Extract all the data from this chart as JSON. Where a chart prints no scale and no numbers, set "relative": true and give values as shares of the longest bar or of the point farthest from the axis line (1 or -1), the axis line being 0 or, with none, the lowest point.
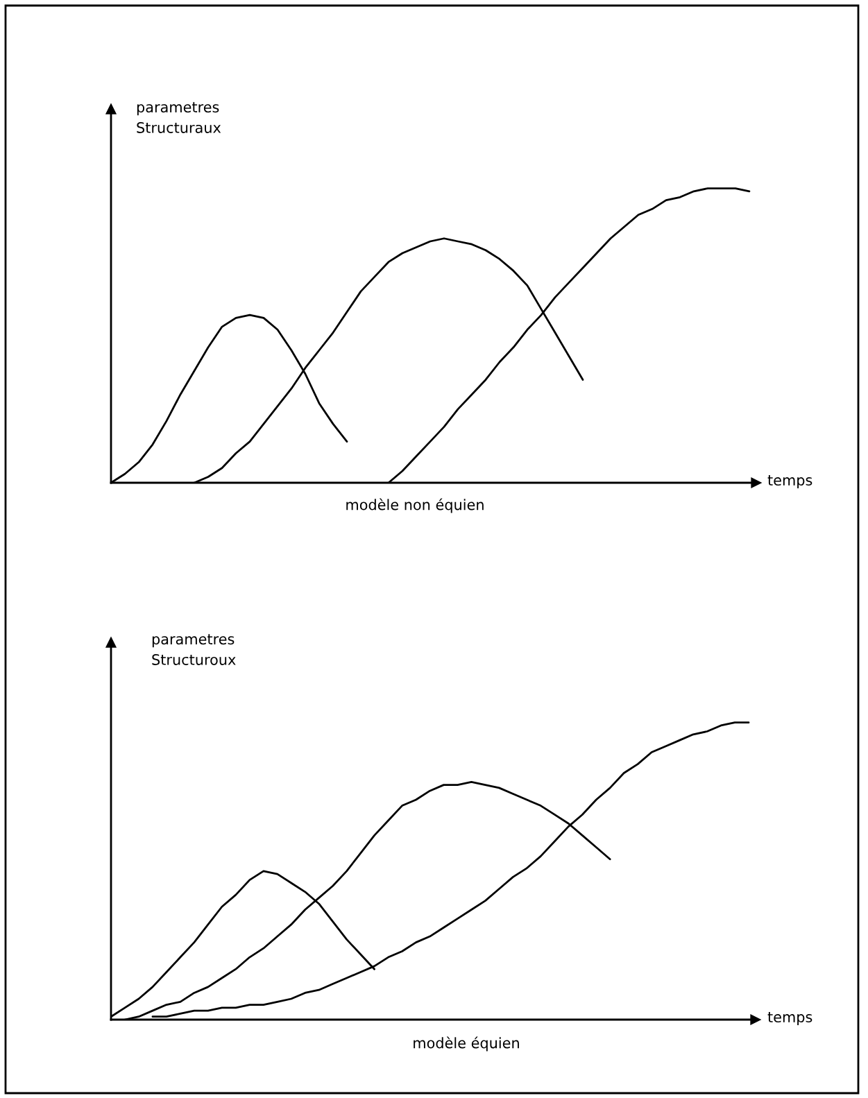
{
  "chart_data": [
    {
      "type": "line",
      "relative": true,
      "tick_labels": false,
      "ylabel": "parametres\nStructuraux",
      "xlabel": "temps",
      "annotations": [
        "modèle non équien"
      ],
      "categories": [
        null,
        null,
        null,
        null,
        null,
        null,
        null,
        null,
        null,
        null,
        null,
        null,
        null,
        null,
        null,
        null,
        null,
        null,
        null,
        null,
        null,
        null,
        null,
        null,
        null,
        null,
        null,
        null,
        null,
        null,
        null,
        null,
        null,
        null,
        null,
        null,
        null,
        null,
        null,
        null,
        null,
        null,
        null,
        null,
        null,
        null,
        null
      ],
      "series": [
        {
          "color": "#000000",
          "values": [
            0,
            0.03,
            0.07,
            0.13,
            0.21,
            0.3,
            0.38,
            0.46,
            0.53,
            0.56,
            0.57,
            0.56,
            0.52,
            0.45,
            0.37,
            0.27,
            0.2,
            0.14,
            null,
            null,
            null,
            null,
            null,
            null,
            null,
            null,
            null,
            null,
            null,
            null,
            null,
            null,
            null,
            null,
            null,
            null,
            null,
            null,
            null,
            null,
            null,
            null,
            null,
            null,
            null,
            null,
            null
          ]
        },
        {
          "color": "#000000",
          "values": [
            null,
            null,
            null,
            null,
            null,
            null,
            0,
            0.02,
            0.05,
            0.1,
            0.14,
            0.2,
            0.26,
            0.32,
            0.39,
            0.45,
            0.51,
            0.58,
            0.65,
            0.7,
            0.75,
            0.78,
            0.8,
            0.82,
            0.83,
            0.82,
            0.81,
            0.79,
            0.76,
            0.72,
            0.67,
            0.59,
            0.51,
            0.43,
            0.35,
            null,
            null,
            null,
            null,
            null,
            null,
            null,
            null,
            null,
            null,
            null,
            null
          ]
        },
        {
          "color": "#000000",
          "values": [
            null,
            null,
            null,
            null,
            null,
            null,
            null,
            null,
            null,
            null,
            null,
            null,
            null,
            null,
            null,
            null,
            null,
            null,
            null,
            null,
            0,
            0.04,
            0.09,
            0.14,
            0.19,
            0.25,
            0.3,
            0.35,
            0.41,
            0.46,
            0.52,
            0.57,
            0.63,
            0.68,
            0.73,
            0.78,
            0.83,
            0.87,
            0.91,
            0.93,
            0.96,
            0.97,
            0.99,
            1.0,
            1.0,
            1.0,
            0.99
          ]
        }
      ]
    },
    {
      "type": "line",
      "relative": true,
      "tick_labels": false,
      "ylabel": "parametres\nStructuroux",
      "xlabel": "temps",
      "annotations": [
        "modèle équien"
      ],
      "categories": [
        null,
        null,
        null,
        null,
        null,
        null,
        null,
        null,
        null,
        null,
        null,
        null,
        null,
        null,
        null,
        null,
        null,
        null,
        null,
        null,
        null,
        null,
        null,
        null,
        null,
        null,
        null,
        null,
        null,
        null,
        null,
        null,
        null,
        null,
        null,
        null,
        null,
        null,
        null,
        null,
        null,
        null,
        null,
        null,
        null,
        null,
        null
      ],
      "series": [
        {
          "color": "#000000",
          "values": [
            0.01,
            0.04,
            0.07,
            0.11,
            0.16,
            0.21,
            0.26,
            0.32,
            0.38,
            0.42,
            0.47,
            0.5,
            0.49,
            0.46,
            0.43,
            0.39,
            0.33,
            0.27,
            0.22,
            0.17,
            null,
            null,
            null,
            null,
            null,
            null,
            null,
            null,
            null,
            null,
            null,
            null,
            null,
            null,
            null,
            null,
            null,
            null,
            null,
            null,
            null,
            null,
            null,
            null,
            null,
            null,
            null
          ]
        },
        {
          "color": "#000000",
          "values": [
            null,
            0,
            0.01,
            0.03,
            0.05,
            0.06,
            0.09,
            0.11,
            0.14,
            0.17,
            0.21,
            0.24,
            0.28,
            0.32,
            0.37,
            0.41,
            0.45,
            0.5,
            0.56,
            0.62,
            0.67,
            0.72,
            0.74,
            0.77,
            0.79,
            0.79,
            0.8,
            0.79,
            0.78,
            0.76,
            0.74,
            0.72,
            0.69,
            0.66,
            0.62,
            0.58,
            0.54,
            null,
            null,
            null,
            null,
            null,
            null,
            null,
            null,
            null,
            null
          ]
        },
        {
          "color": "#000000",
          "values": [
            null,
            null,
            null,
            0.01,
            0.01,
            0.02,
            0.03,
            0.03,
            0.04,
            0.04,
            0.05,
            0.05,
            0.06,
            0.07,
            0.09,
            0.1,
            0.12,
            0.14,
            0.16,
            0.18,
            0.21,
            0.23,
            0.26,
            0.28,
            0.31,
            0.34,
            0.37,
            0.4,
            0.44,
            0.48,
            0.51,
            0.55,
            0.6,
            0.65,
            0.69,
            0.74,
            0.78,
            0.83,
            0.86,
            0.9,
            0.92,
            0.94,
            0.96,
            0.97,
            0.99,
            1.0,
            1.0
          ]
        }
      ]
    }
  ]
}
